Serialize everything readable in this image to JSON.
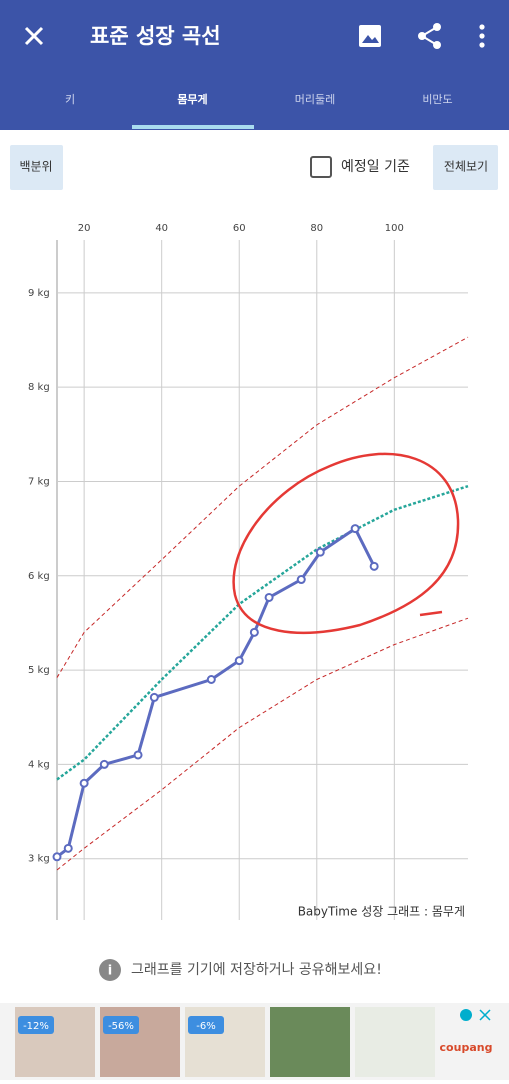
{
  "header": {
    "title": "표준 성장 곡선"
  },
  "tabs": [
    "키",
    "몸무게",
    "머리둘레",
    "비만도"
  ],
  "controls": {
    "percentile_button": "백분위",
    "checkbox_label": "예정일 기준",
    "full_view_button": "전체보기"
  },
  "chart_data": {
    "type": "line",
    "caption": "BabyTime 성장 그래프 : 몸무게",
    "xlim": [
      13,
      119
    ],
    "xticks": [
      20,
      40,
      60,
      80,
      100
    ],
    "ylim": [
      2.35,
      9.56
    ],
    "yticks": [
      {
        "value": 3,
        "label": "3 kg"
      },
      {
        "value": 4,
        "label": "4 kg"
      },
      {
        "value": 5,
        "label": "5 kg"
      },
      {
        "value": 6,
        "label": "6 kg"
      },
      {
        "value": 7,
        "label": "7 kg"
      },
      {
        "value": 8,
        "label": "8 kg"
      },
      {
        "value": 9,
        "label": "9 kg"
      }
    ],
    "grid": true,
    "series": [
      {
        "color": "#c62828",
        "style": "dashed",
        "x": [
          13,
          20,
          40,
          60,
          80,
          100,
          119
        ],
        "values": [
          4.92,
          5.4,
          6.17,
          6.95,
          7.6,
          8.1,
          8.53
        ]
      },
      {
        "color": "#26a69a",
        "style": "dotted",
        "x": [
          13,
          20,
          40,
          60,
          80,
          100,
          119
        ],
        "values": [
          3.84,
          4.05,
          4.9,
          5.7,
          6.28,
          6.7,
          6.95
        ]
      },
      {
        "color": "#c62828",
        "style": "dashed",
        "x": [
          13,
          20,
          40,
          60,
          80,
          100,
          119
        ],
        "values": [
          2.88,
          3.11,
          3.73,
          4.39,
          4.9,
          5.27,
          5.55
        ]
      },
      {
        "color": "#5c6bc0",
        "style": "solid",
        "markers": true,
        "x": [
          13,
          15.9,
          20,
          25.2,
          33.9,
          38.1,
          52.8,
          60,
          63.9,
          67.7,
          76,
          80.9,
          89.9,
          94.8
        ],
        "values": [
          3.02,
          3.11,
          3.8,
          4.0,
          4.1,
          4.71,
          4.9,
          5.1,
          5.4,
          5.77,
          5.96,
          6.25,
          6.5,
          6.1
        ]
      }
    ]
  },
  "info": {
    "text": "그래프를 기기에 저장하거나 공유해보세요!"
  },
  "ads": {
    "discounts": [
      "-12%",
      "-56%",
      "-6%"
    ],
    "brand": "coupang"
  }
}
